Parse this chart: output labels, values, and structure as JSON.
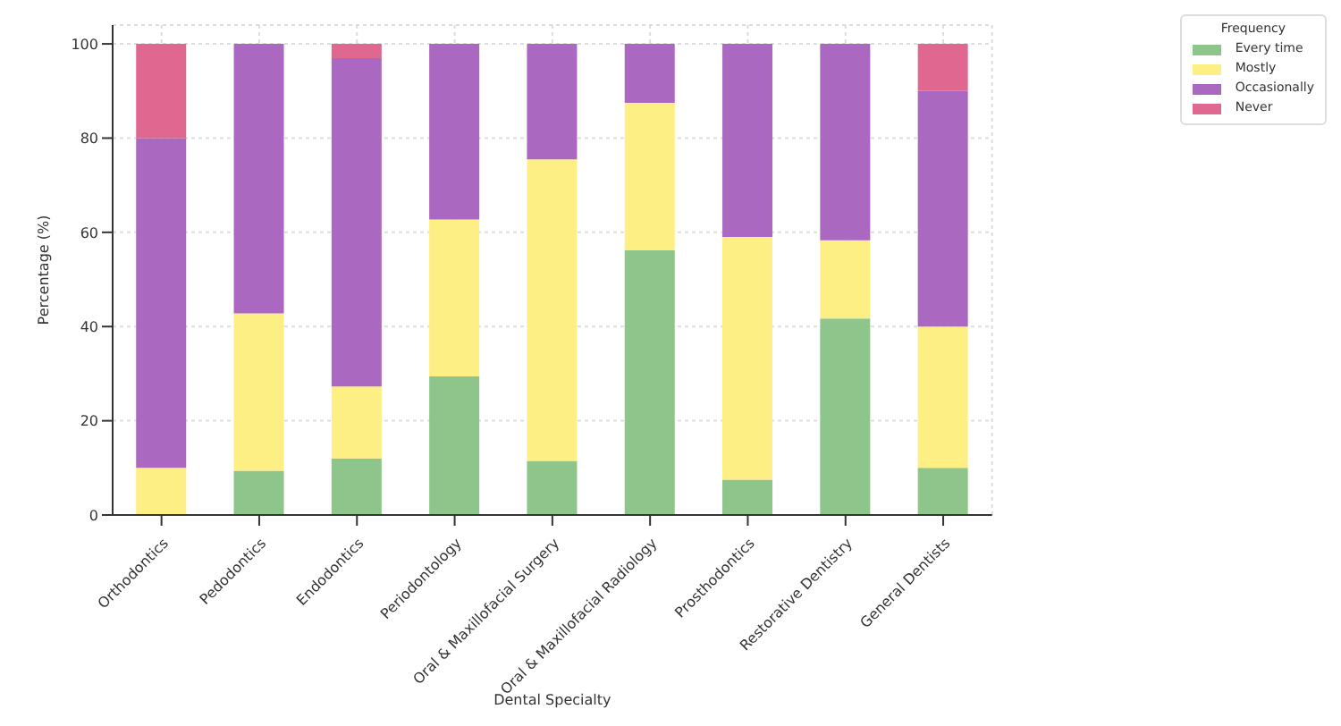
{
  "chart_data": {
    "type": "bar",
    "stacked": true,
    "xlabel": "Dental Specialty",
    "ylabel": "Percentage (%)",
    "legend_title": "Frequency",
    "legend": "top right",
    "grid": true,
    "categories": [
      "Orthodontics",
      "Pedodontics",
      "Endodontics",
      "Periodontology",
      "Oral & Maxillofacial Surgery",
      "Oral & Maxillofacial Radiology",
      "Prosthodontics",
      "Restorative Dentistry",
      "General Dentists"
    ],
    "ylim": [
      0,
      104
    ],
    "yticks": [
      0,
      20,
      40,
      60,
      80,
      100
    ],
    "series": [
      {
        "name": "Every time",
        "color": "#8dc58a",
        "values": [
          0,
          9.4,
          12,
          29.4,
          11.5,
          56.2,
          7.5,
          41.7,
          10
        ]
      },
      {
        "name": "Mostly",
        "color": "#fdef84",
        "values": [
          10,
          33.4,
          15.3,
          33.3,
          64,
          31.3,
          51.5,
          16.6,
          30
        ]
      },
      {
        "name": "Occasionally",
        "color": "#ab68c0",
        "values": [
          70,
          57.2,
          69.7,
          37.3,
          24.5,
          12.5,
          41,
          41.7,
          50
        ]
      },
      {
        "name": "Never",
        "color": "#e06890",
        "values": [
          20,
          0,
          3,
          0,
          0,
          0,
          0,
          0,
          10
        ]
      }
    ]
  }
}
